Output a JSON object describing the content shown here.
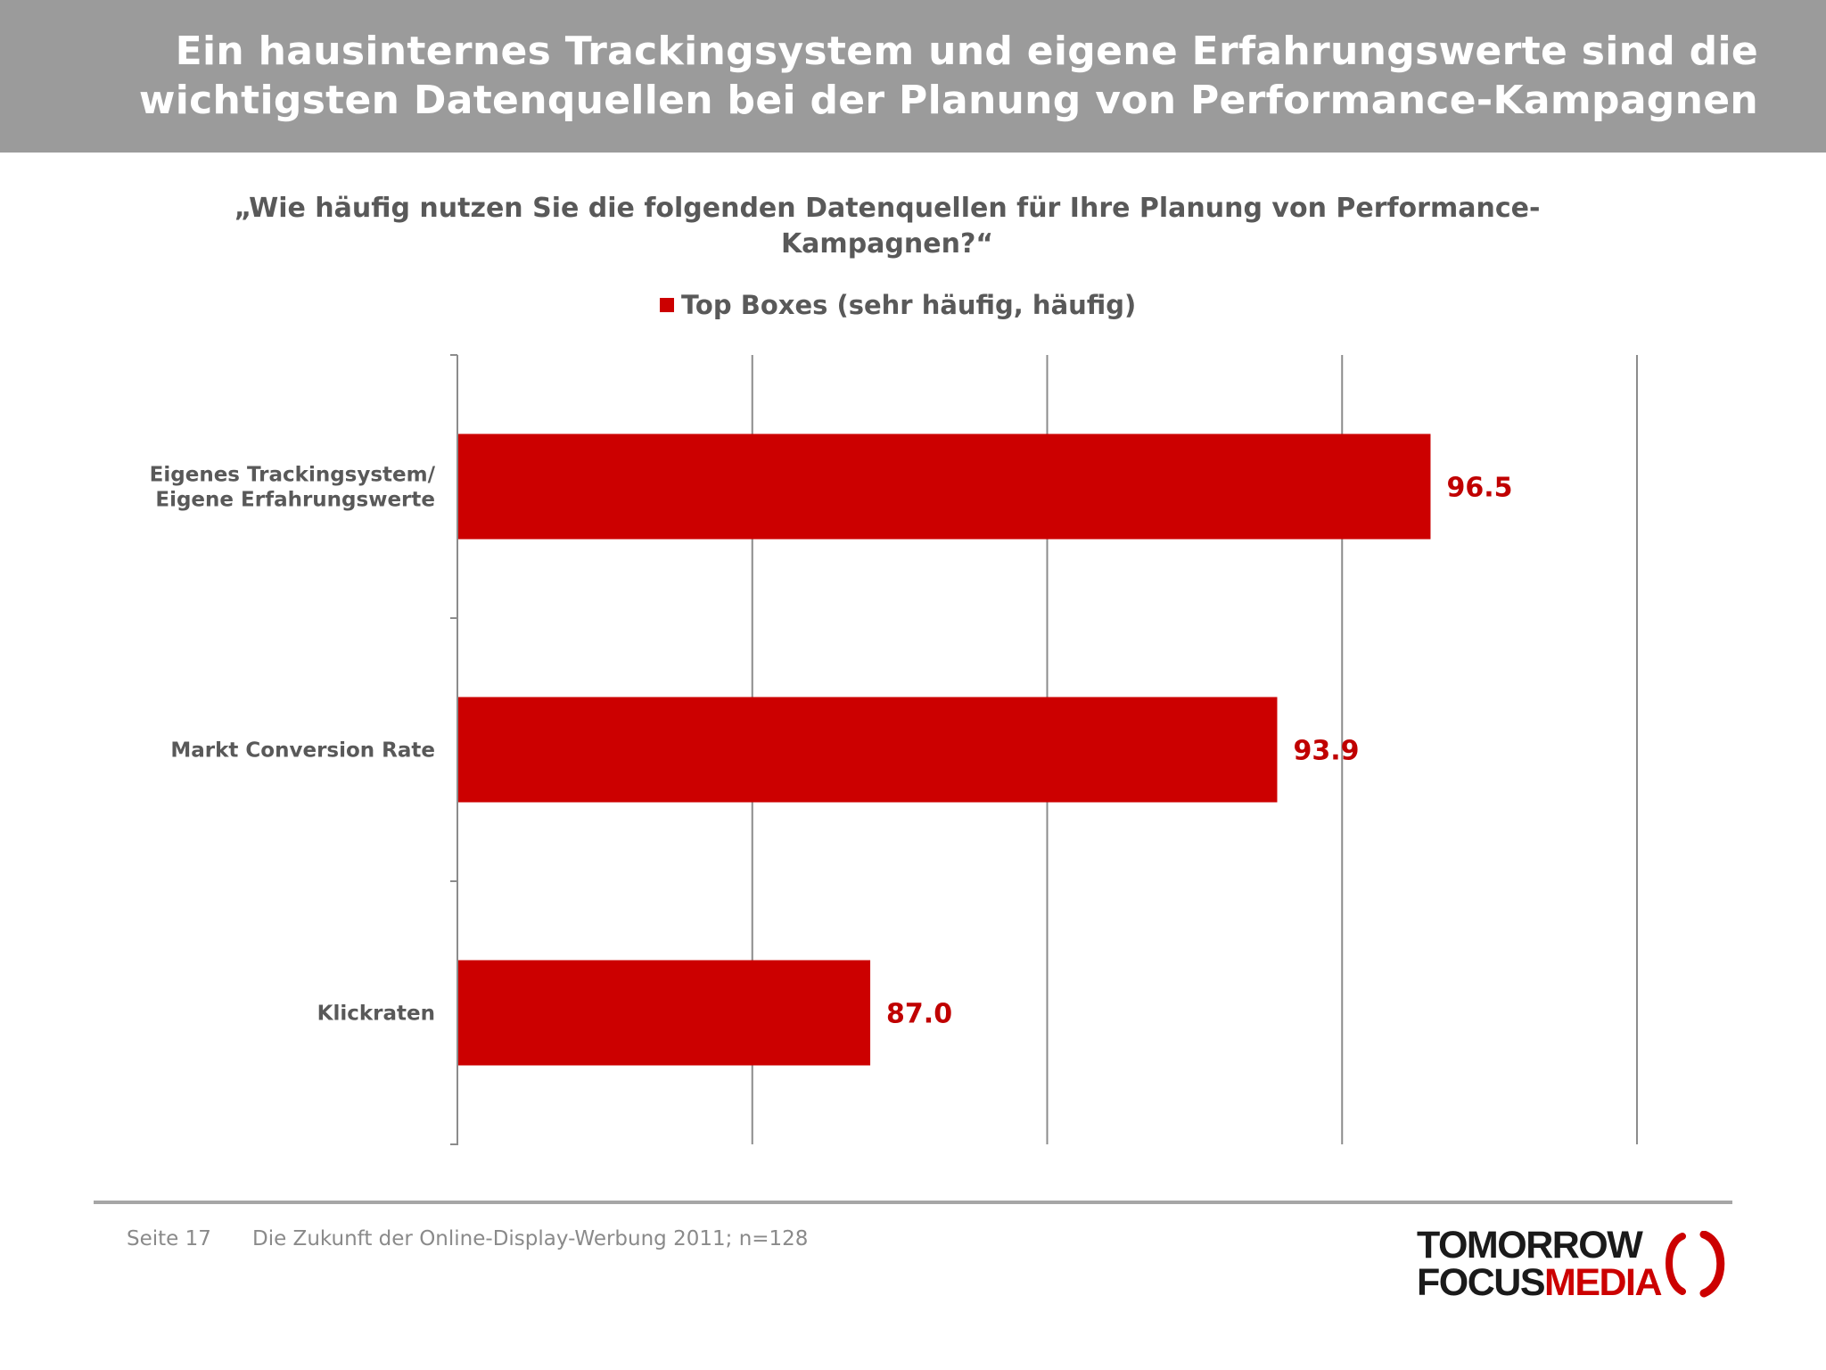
{
  "header": {
    "title_line1": "Ein  hausinternes Trackingsystem und eigene Erfahrungswerte sind die",
    "title_line2": "wichtigsten Datenquellen bei der Planung von Performance-Kampagnen"
  },
  "chart_data": {
    "type": "bar",
    "orientation": "horizontal",
    "title_line1": "„Wie häufig nutzen Sie die folgenden Datenquellen für Ihre Planung von Performance-",
    "title_line2": "Kampagnen?“",
    "legend_position": "top",
    "series": [
      {
        "name": "Top Boxes (sehr häufig, häufig)",
        "values": [
          96.5,
          93.9,
          87.0
        ],
        "color": "#cc0000"
      }
    ],
    "categories": [
      [
        "Eigenes Trackingsystem/",
        "Eigene Erfahrungswerte"
      ],
      [
        "Markt Conversion Rate"
      ],
      [
        "Klickraten"
      ]
    ],
    "data_labels": [
      "96.5",
      "93.9",
      "87.0"
    ],
    "xlim": [
      80,
      100
    ],
    "grid": true,
    "ticks_visible": false
  },
  "footer": {
    "page": "Seite 17",
    "source": "Die Zukunft der Online-Display-Werbung 2011; n=128"
  },
  "logo": {
    "line1": "TOMORROW",
    "focus": "FOCUS",
    "media": "MEDIA",
    "accent": "#cc0000"
  }
}
